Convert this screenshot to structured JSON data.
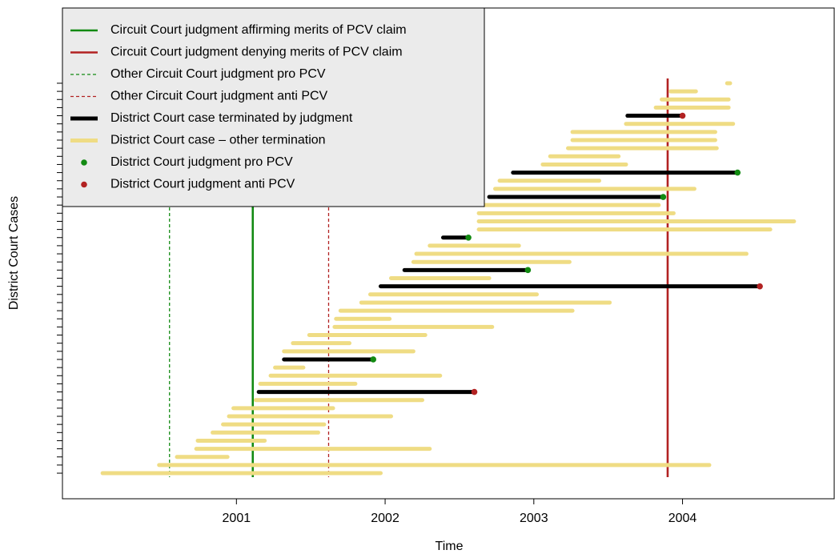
{
  "chart_data": {
    "type": "timeline",
    "xlabel": "Time",
    "ylabel": "District Court Cases",
    "xlim": [
      1999.83,
      2005.02
    ],
    "xticks": [
      2001,
      2002,
      2003,
      2004
    ],
    "ylim": [
      -2.15,
      58.26
    ],
    "yticks": [
      1,
      2,
      3,
      4,
      5,
      6,
      7,
      8,
      9,
      10,
      11,
      12,
      13,
      14,
      15,
      16,
      17,
      18,
      19,
      20,
      21,
      22,
      23,
      24,
      25,
      26,
      27,
      28,
      29,
      30,
      31,
      32,
      33,
      34,
      35,
      36,
      37,
      38,
      39,
      40,
      41,
      42,
      43,
      44,
      45,
      46,
      47,
      48,
      49
    ],
    "vlines": [
      {
        "name": "Circuit Court judgment affirming merits of PCV claim",
        "color": "#128a12",
        "dashed": false,
        "x": 2001.11
      },
      {
        "name": "Circuit Court judgment denying merits of PCV claim",
        "color": "#b22222",
        "dashed": false,
        "x": 2003.9
      },
      {
        "name": "Other Circuit Court judgment pro PCV",
        "color": "#128a12",
        "dashed": true,
        "x": 2000.55
      },
      {
        "name": "Other Circuit Court judgment anti PCV",
        "color": "#b22222",
        "dashed": true,
        "x": 2001.62
      }
    ],
    "segments": [
      {
        "name": "District Court case terminated by judgment",
        "color": "#000000",
        "case": [
          11,
          15,
          24,
          26,
          30,
          35,
          38,
          45
        ],
        "start": [
          2001.15,
          2001.32,
          2001.97,
          2002.13,
          2002.39,
          2002.7,
          2002.86,
          2003.63
        ],
        "end": [
          2002.6,
          2001.92,
          2004.52,
          2002.96,
          2002.56,
          2003.87,
          2004.37,
          2004.0
        ]
      },
      {
        "name": "District Court case – other termination",
        "color": "#efdc84",
        "case": [
          1,
          2,
          3,
          4,
          5,
          6,
          7,
          8,
          9,
          10,
          12,
          13,
          14,
          16,
          17,
          18,
          19,
          20,
          21,
          22,
          23,
          25,
          27,
          28,
          29,
          31,
          32,
          33,
          34,
          36,
          37,
          39,
          40,
          41,
          42,
          43,
          44,
          46,
          47,
          48,
          49
        ],
        "start": [
          2000.1,
          2000.48,
          2000.6,
          2000.73,
          2000.74,
          2000.84,
          2000.91,
          2000.95,
          2000.98,
          2001.13,
          2001.16,
          2001.23,
          2001.26,
          2001.32,
          2001.38,
          2001.49,
          2001.66,
          2001.67,
          2001.7,
          2001.84,
          2001.9,
          2002.04,
          2002.19,
          2002.21,
          2002.3,
          2002.63,
          2002.63,
          2002.63,
          2002.66,
          2002.74,
          2002.77,
          2003.06,
          2003.11,
          2003.23,
          2003.26,
          2003.26,
          2003.62,
          2003.82,
          2003.86,
          2003.92,
          2004.3
        ],
        "end": [
          2001.97,
          2004.18,
          2000.94,
          2002.3,
          2001.19,
          2001.55,
          2001.59,
          2002.04,
          2001.65,
          2002.25,
          2001.8,
          2002.37,
          2001.45,
          2002.19,
          2001.76,
          2002.27,
          2002.72,
          2002.03,
          2003.26,
          2003.51,
          2003.02,
          2002.7,
          2003.24,
          2004.43,
          2002.9,
          2004.59,
          2004.75,
          2003.94,
          2003.84,
          2004.08,
          2003.44,
          2003.62,
          2003.57,
          2004.23,
          2004.22,
          2004.22,
          2004.34,
          2004.31,
          2004.31,
          2004.09,
          2004.32
        ]
      }
    ],
    "points": [
      {
        "name": "District Court judgment pro PCV",
        "color": "#128a12",
        "case": [
          15,
          26,
          30,
          35,
          38
        ],
        "x": [
          2001.92,
          2002.96,
          2002.56,
          2003.87,
          2004.37
        ]
      },
      {
        "name": "District Court judgment anti PCV",
        "color": "#b22222",
        "case": [
          11,
          24,
          45
        ],
        "x": [
          2002.6,
          2004.52,
          2004.0
        ]
      }
    ]
  }
}
